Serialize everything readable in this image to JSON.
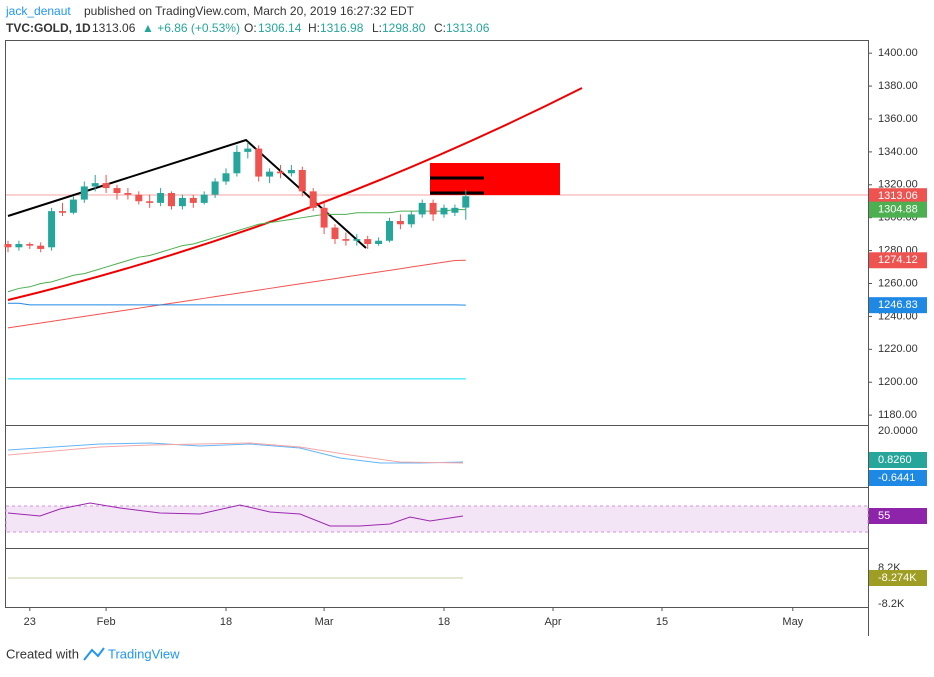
{
  "header": {
    "author": "jack_denaut",
    "published": "published on TradingView.com, March 20, 2019 16:27:32 EDT",
    "symbol": "TVC:GOLD, 1D",
    "last": "1313.06",
    "change": "▲ +6.86 (+0.53%)",
    "o_label": "O:",
    "o": "1306.14",
    "h_label": "H:",
    "h": "1316.98",
    "l_label": "L:",
    "l": "1298.80",
    "c_label": "C:",
    "c": "1313.06"
  },
  "chart_data": {
    "type": "candlestick",
    "up_color": "#26a69a",
    "down_color": "#ef5350",
    "open": [
      1284,
      1282,
      1284,
      1283,
      1282,
      1304,
      1303,
      1311,
      1319,
      1321,
      1318,
      1315,
      1314,
      1310,
      1309,
      1315,
      1307,
      1312,
      1309,
      1314,
      1322,
      1327,
      1340,
      1342,
      1325,
      1328,
      1327,
      1329,
      1316,
      1306,
      1294,
      1287,
      1286,
      1287,
      1284,
      1286,
      1298,
      1296,
      1302,
      1309,
      1302,
      1303,
      1306.14
    ],
    "high": [
      1286,
      1286,
      1285,
      1285,
      1306,
      1309,
      1313,
      1322,
      1326,
      1326,
      1320,
      1318,
      1316,
      1314,
      1318,
      1316,
      1314,
      1314,
      1316,
      1324,
      1330,
      1344,
      1346,
      1344,
      1330,
      1332,
      1332,
      1331,
      1318,
      1309,
      1296,
      1291,
      1290,
      1289,
      1288,
      1300,
      1302,
      1304,
      1311,
      1311,
      1308,
      1308,
      1316.98
    ],
    "low": [
      1279,
      1280,
      1281,
      1279,
      1280,
      1301,
      1302,
      1309,
      1316,
      1315,
      1311,
      1311,
      1308,
      1306,
      1307,
      1305,
      1305,
      1306,
      1308,
      1312,
      1320,
      1325,
      1336,
      1322,
      1321,
      1324,
      1325,
      1313,
      1304,
      1290,
      1284,
      1283,
      1283,
      1281,
      1283,
      1285,
      1293,
      1294,
      1300,
      1298,
      1300,
      1301,
      1298.8
    ],
    "close": [
      1282,
      1284,
      1283,
      1281,
      1304,
      1303,
      1311,
      1319,
      1321,
      1318,
      1315,
      1314,
      1310,
      1309,
      1315,
      1307,
      1312,
      1309,
      1314,
      1322,
      1327,
      1340,
      1342,
      1325,
      1328,
      1327,
      1329,
      1316,
      1306,
      1294,
      1287,
      1286,
      1287,
      1284,
      1286,
      1298,
      1296,
      1302,
      1309,
      1302,
      1306,
      1306,
      1313.06
    ],
    "series": [
      {
        "color": "#4caf50",
        "values": [
          1255,
          1257,
          1258,
          1260,
          1261,
          1263,
          1265,
          1266,
          1268,
          1270,
          1272,
          1274,
          1276,
          1277,
          1279,
          1281,
          1283,
          1284,
          1286,
          1288,
          1290,
          1292,
          1294,
          1296,
          1297,
          1298,
          1299,
          1300,
          1301,
          1302,
          1302,
          1302,
          1303,
          1303,
          1303,
          1303,
          1304,
          1304,
          1304,
          1304,
          1304,
          1305,
          1304.88
        ]
      },
      {
        "color": "#ef5350",
        "values": [
          1233,
          1234,
          1235,
          1236,
          1237,
          1238,
          1239,
          1240,
          1241,
          1242,
          1243,
          1244,
          1245,
          1246,
          1247,
          1248,
          1249,
          1250,
          1251,
          1252,
          1253,
          1254,
          1255,
          1256,
          1257,
          1258,
          1259,
          1260,
          1261,
          1262,
          1263,
          1264,
          1265,
          1266,
          1267,
          1268,
          1269,
          1270,
          1271,
          1272,
          1273,
          1274,
          1274.12
        ]
      },
      {
        "color": "#1e88e5",
        "values": [
          1248,
          1248,
          1247,
          1247,
          1247,
          1247,
          1247,
          1247,
          1247,
          1247,
          1247,
          1247,
          1247,
          1247,
          1247,
          1247,
          1247,
          1247,
          1247,
          1247,
          1247,
          1247,
          1247,
          1247,
          1247,
          1247,
          1247,
          1247,
          1247,
          1247,
          1247,
          1247,
          1247,
          1247,
          1247,
          1247,
          1247,
          1247,
          1247,
          1247,
          1247,
          1247,
          1246.83
        ]
      },
      {
        "color": "#00e5ff",
        "values": [
          1202,
          1202,
          1202,
          1202,
          1202,
          1202,
          1202,
          1202,
          1202,
          1202,
          1202,
          1202,
          1202,
          1202,
          1202,
          1202,
          1202,
          1202,
          1202,
          1202,
          1202,
          1202,
          1202,
          1202,
          1202,
          1202,
          1202,
          1202,
          1202,
          1202,
          1202,
          1202,
          1202,
          1202,
          1202,
          1202,
          1202,
          1202,
          1202,
          1202,
          1202,
          1202,
          1202
        ]
      }
    ],
    "ylim": [
      1174,
      1408
    ],
    "yticks": [
      {
        "value": 1180,
        "label": "1180.00"
      },
      {
        "value": 1200,
        "label": "1200.00"
      },
      {
        "value": 1220,
        "label": "1220.00"
      },
      {
        "value": 1240,
        "label": "1240.00"
      },
      {
        "value": 1260,
        "label": "1260.00"
      },
      {
        "value": 1280,
        "label": "1280.00"
      },
      {
        "value": 1300,
        "label": "1300.00"
      },
      {
        "value": 1320,
        "label": "1320.00"
      },
      {
        "value": 1340,
        "label": "1340.00"
      },
      {
        "value": 1360,
        "label": "1360.00"
      },
      {
        "value": 1380,
        "label": "1380.00"
      },
      {
        "value": 1400,
        "label": "1400.00"
      }
    ],
    "xticks": [
      {
        "value": 2,
        "label": "23"
      },
      {
        "value": 9,
        "label": "Feb"
      },
      {
        "value": 20,
        "label": "18"
      },
      {
        "value": 29,
        "label": "Mar"
      },
      {
        "value": 40,
        "label": "18"
      },
      {
        "value": 50,
        "label": "Apr"
      },
      {
        "value": 60,
        "label": "15"
      },
      {
        "value": 72,
        "label": "May"
      }
    ],
    "price_labels": [
      {
        "value": 1313.06,
        "color": "#ef5350"
      },
      {
        "value": 1304.88,
        "color": "#4caf50"
      },
      {
        "value": 1274.12,
        "color": "#ef5350"
      },
      {
        "value": 1246.83,
        "color": "#1e88e5"
      }
    ]
  },
  "panes": [
    {
      "labels": [
        "20.0000",
        "0.8260",
        "-0.6441"
      ]
    },
    {
      "labels": [
        "55"
      ]
    },
    {
      "labels": [
        "8.2K",
        "-8.274K",
        "-8.2K"
      ]
    }
  ],
  "footer": {
    "created": "Created with",
    "brand": "TradingView"
  }
}
